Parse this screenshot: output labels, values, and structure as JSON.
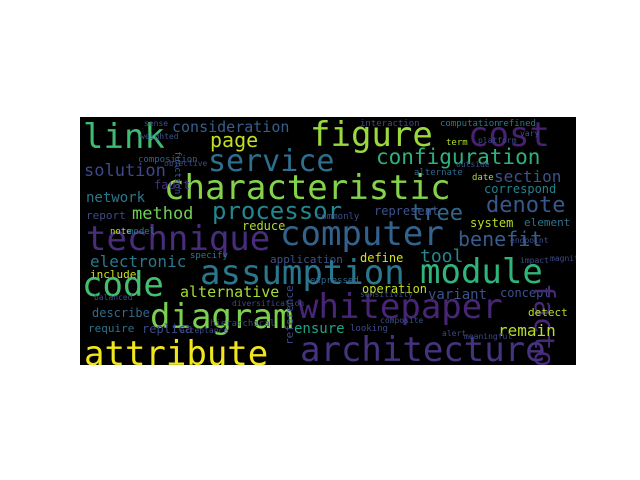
{
  "word_cloud": {
    "background": "#000000",
    "words": [
      {
        "text": "link",
        "color": "#3fbc73"
      },
      {
        "text": "consideration",
        "color": "#355f8d"
      },
      {
        "text": "figure",
        "color": "#9bd93c"
      },
      {
        "text": "cost",
        "color": "#482173"
      },
      {
        "text": "page",
        "color": "#c2df23"
      },
      {
        "text": "service",
        "color": "#2e6f8e"
      },
      {
        "text": "configuration",
        "color": "#2db27d"
      },
      {
        "text": "solution",
        "color": "#3e4989"
      },
      {
        "text": "characteristic",
        "color": "#84d44b"
      },
      {
        "text": "section",
        "color": "#3b528b"
      },
      {
        "text": "network",
        "color": "#2a788e"
      },
      {
        "text": "processor",
        "color": "#24868e"
      },
      {
        "text": "denote",
        "color": "#38588c"
      },
      {
        "text": "method",
        "color": "#6ece58"
      },
      {
        "text": "tree",
        "color": "#31688e"
      },
      {
        "text": "correspond",
        "color": "#26828e"
      },
      {
        "text": "report",
        "color": "#3e4a89"
      },
      {
        "text": "fault",
        "color": "#46327e"
      },
      {
        "text": "represent",
        "color": "#3b528b"
      },
      {
        "text": "system",
        "color": "#b5de2b"
      },
      {
        "text": "element",
        "color": "#2c728e"
      },
      {
        "text": "technique",
        "color": "#472d7b"
      },
      {
        "text": "computer",
        "color": "#33638d"
      },
      {
        "text": "reduce",
        "color": "#addc30"
      },
      {
        "text": "benefit",
        "color": "#375b8d"
      },
      {
        "text": "electronic",
        "color": "#2a788e"
      },
      {
        "text": "application",
        "color": "#3b528b"
      },
      {
        "text": "define",
        "color": "#d8e219"
      },
      {
        "text": "tool",
        "color": "#23898e"
      },
      {
        "text": "assumption",
        "color": "#2a788e"
      },
      {
        "text": "module",
        "color": "#2fb47c"
      },
      {
        "text": "include",
        "color": "#d0e11c"
      },
      {
        "text": "code",
        "color": "#44bf70"
      },
      {
        "text": "alternative",
        "color": "#a5db36"
      },
      {
        "text": "operation",
        "color": "#c0df25"
      },
      {
        "text": "variant",
        "color": "#3b528b"
      },
      {
        "text": "concept",
        "color": "#3b528b"
      },
      {
        "text": "factor",
        "color": "#482878"
      },
      {
        "text": "diagram",
        "color": "#7ad151"
      },
      {
        "text": "whitepaper",
        "color": "#482576"
      },
      {
        "text": "describe",
        "color": "#31688e"
      },
      {
        "text": "require",
        "color": "#2c728e"
      },
      {
        "text": "replica",
        "color": "#3e4989"
      },
      {
        "text": "detect",
        "color": "#b5de2b"
      },
      {
        "text": "ensure",
        "color": "#20a386"
      },
      {
        "text": "remain",
        "color": "#b8de29"
      },
      {
        "text": "attribute",
        "color": "#f1e51d"
      },
      {
        "text": "architecture",
        "color": "#46337f"
      },
      {
        "text": "reference",
        "color": "#3e4a89"
      },
      {
        "text": "note",
        "color": "#b5de2b"
      },
      {
        "text": "model",
        "color": "#2a788e"
      },
      {
        "text": "composition",
        "color": "#35608d"
      },
      {
        "text": "function",
        "color": "#355f8d"
      },
      {
        "text": "interaction",
        "color": "#3e4989"
      },
      {
        "text": "computation",
        "color": "#2a788e"
      },
      {
        "text": "refined",
        "color": "#2a788e"
      },
      {
        "text": "alternate",
        "color": "#31688e"
      },
      {
        "text": "term",
        "color": "#b5de2b"
      },
      {
        "text": "date",
        "color": "#addc30"
      },
      {
        "text": "specify",
        "color": "#2a788e"
      },
      {
        "text": "hierarchical",
        "color": "#3e4a89"
      },
      {
        "text": "commonly",
        "color": "#3b528b"
      },
      {
        "text": "looking",
        "color": "#3e4a89"
      },
      {
        "text": "expressed",
        "color": "#31688e"
      },
      {
        "text": "sensitivity",
        "color": "#3e4a89"
      },
      {
        "text": "composite",
        "color": "#3b528b"
      },
      {
        "text": "outside",
        "color": "#3b528b"
      },
      {
        "text": "meaningful",
        "color": "#3e4a89"
      },
      {
        "text": "impact",
        "color": "#3e4a89"
      },
      {
        "text": "platform",
        "color": "#3e4a89"
      },
      {
        "text": "magnitude",
        "color": "#3e4a89"
      },
      {
        "text": "balanced",
        "color": "#3e4a89"
      },
      {
        "text": "sense",
        "color": "#3b528b"
      },
      {
        "text": "objective",
        "color": "#3e4a89"
      },
      {
        "text": "endpoint",
        "color": "#3b528b"
      },
      {
        "text": "acceptance",
        "color": "#3e4a89"
      },
      {
        "text": "diversification",
        "color": "#3e4a89"
      },
      {
        "text": "weighted",
        "color": "#3b528b"
      },
      {
        "text": "vary",
        "color": "#3b528b"
      },
      {
        "text": "alert",
        "color": "#3e4a89"
      }
    ]
  }
}
